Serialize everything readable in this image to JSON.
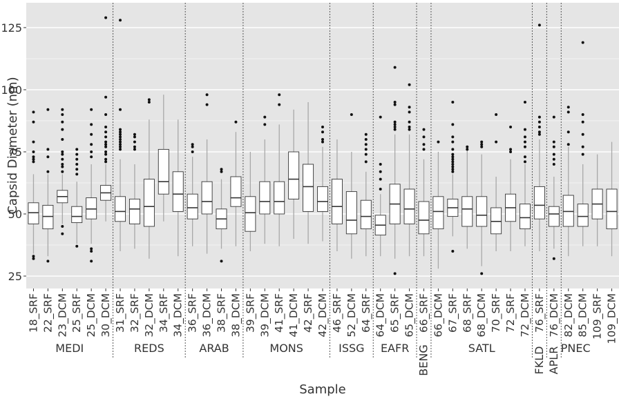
{
  "chart_data": {
    "type": "boxplot",
    "xlabel": "Sample",
    "ylabel": "Capsid Diameter (nm)",
    "ylim": [
      20,
      135
    ],
    "yticks": [
      25,
      50,
      75,
      100,
      125
    ],
    "grid": true,
    "legend": "none",
    "colors": {
      "panel_background": "#e5e5e5",
      "gridline": "#ffffff",
      "box_fill": "#ffffff",
      "box_stroke": "#333333",
      "whisker": "#a8a8a8",
      "outlier": "#111111",
      "separator": "#555555",
      "text": "#333333"
    },
    "groups": [
      {
        "name": "MEDI",
        "count": 6
      },
      {
        "name": "REDS",
        "count": 5
      },
      {
        "name": "ARAB",
        "count": 4
      },
      {
        "name": "MONS",
        "count": 6
      },
      {
        "name": "ISSG",
        "count": 3
      },
      {
        "name": "EAFR",
        "count": 3
      },
      {
        "name": "BENG",
        "count": 1
      },
      {
        "name": "SATL",
        "count": 7
      },
      {
        "name": "FKLD",
        "count": 1
      },
      {
        "name": "APLR",
        "count": 1
      },
      {
        "name": "PNEC",
        "count": 2
      }
    ],
    "boxes": [
      {
        "label": "18_SRF",
        "q1": 46,
        "median": 50.5,
        "q3": 54.5,
        "lower": 34,
        "upper": 66,
        "outliers": [
          91,
          87,
          79,
          75,
          73,
          72,
          71,
          33,
          32
        ]
      },
      {
        "label": "22_SRF",
        "q1": 44,
        "median": 49,
        "q3": 53.5,
        "lower": 33,
        "upper": 66,
        "outliers": [
          92,
          76,
          73,
          67,
          31
        ]
      },
      {
        "label": "23_DCM",
        "q1": 54.5,
        "median": 57,
        "q3": 59.5,
        "lower": 46,
        "upper": 66,
        "outliers": [
          92,
          90,
          87,
          84,
          80,
          75,
          74,
          72,
          70,
          69,
          67,
          45,
          42
        ]
      },
      {
        "label": "25_SRF",
        "q1": 46.5,
        "median": 49,
        "q3": 53,
        "lower": 38,
        "upper": 63,
        "outliers": [
          76,
          74,
          72,
          70,
          68,
          66,
          37
        ]
      },
      {
        "label": "25_DCM",
        "q1": 48,
        "median": 52,
        "q3": 56.5,
        "lower": 38,
        "upper": 70,
        "outliers": [
          92,
          86,
          82,
          78,
          75,
          73,
          36,
          35,
          31
        ]
      },
      {
        "label": "30_DCM",
        "q1": 55.5,
        "median": 58.5,
        "q3": 61.5,
        "lower": 47,
        "upper": 70,
        "outliers": [
          129,
          97,
          90,
          85,
          83,
          81,
          79,
          78,
          77,
          75,
          74,
          72,
          71
        ]
      },
      {
        "label": "31_SRF",
        "q1": 47,
        "median": 51,
        "q3": 57,
        "lower": 35,
        "upper": 72,
        "outliers": [
          128,
          92,
          84,
          83,
          82,
          81,
          80,
          79,
          78,
          77,
          76
        ]
      },
      {
        "label": "32_SRF",
        "q1": 46,
        "median": 52,
        "q3": 56,
        "lower": 36,
        "upper": 70,
        "outliers": [
          82,
          81,
          79,
          77,
          76
        ]
      },
      {
        "label": "32_DCM",
        "q1": 45,
        "median": 53,
        "q3": 64,
        "lower": 32,
        "upper": 88,
        "outliers": [
          96,
          95
        ]
      },
      {
        "label": "34_SRF",
        "q1": 58,
        "median": 63,
        "q3": 76,
        "lower": 47,
        "upper": 98,
        "outliers": []
      },
      {
        "label": "34_DCM",
        "q1": 51,
        "median": 58,
        "q3": 67,
        "lower": 33,
        "upper": 88,
        "outliers": []
      },
      {
        "label": "36_SRF",
        "q1": 48,
        "median": 52.5,
        "q3": 58,
        "lower": 37,
        "upper": 73,
        "outliers": [
          78,
          77,
          75
        ]
      },
      {
        "label": "36_DCM",
        "q1": 50,
        "median": 55,
        "q3": 63,
        "lower": 34,
        "upper": 80,
        "outliers": [
          98,
          94
        ]
      },
      {
        "label": "38_SRF",
        "q1": 44,
        "median": 48,
        "q3": 52,
        "lower": 36,
        "upper": 64,
        "outliers": [
          68,
          67,
          31
        ]
      },
      {
        "label": "38_DCM",
        "q1": 53,
        "median": 56.5,
        "q3": 65,
        "lower": 37,
        "upper": 83,
        "outliers": [
          87
        ]
      },
      {
        "label": "39_SRF",
        "q1": 43,
        "median": 50.5,
        "q3": 57,
        "lower": 35,
        "upper": 75,
        "outliers": []
      },
      {
        "label": "39_DCM",
        "q1": 50,
        "median": 55,
        "q3": 63,
        "lower": 38,
        "upper": 80,
        "outliers": [
          89,
          86
        ]
      },
      {
        "label": "41_SRF",
        "q1": 50,
        "median": 55,
        "q3": 63,
        "lower": 37,
        "upper": 86,
        "outliers": [
          98,
          94
        ]
      },
      {
        "label": "41_DCM",
        "q1": 56,
        "median": 64,
        "q3": 75,
        "lower": 40,
        "upper": 92,
        "outliers": []
      },
      {
        "label": "42_SRF",
        "q1": 51,
        "median": 61,
        "q3": 70,
        "lower": 38,
        "upper": 95,
        "outliers": []
      },
      {
        "label": "42_DCM",
        "q1": 51,
        "median": 55,
        "q3": 61,
        "lower": 39,
        "upper": 77,
        "outliers": [
          85,
          83,
          80,
          79
        ]
      },
      {
        "label": "46_SRF",
        "q1": 46,
        "median": 53,
        "q3": 64,
        "lower": 35,
        "upper": 80,
        "outliers": []
      },
      {
        "label": "52_DCM",
        "q1": 42,
        "median": 47.5,
        "q3": 59,
        "lower": 32,
        "upper": 75,
        "outliers": [
          90
        ]
      },
      {
        "label": "64_SRF",
        "q1": 44,
        "median": 49,
        "q3": 55.5,
        "lower": 33,
        "upper": 67,
        "outliers": [
          82,
          80,
          78,
          76,
          74,
          71
        ]
      },
      {
        "label": "64_DCM",
        "q1": 41.5,
        "median": 45.5,
        "q3": 49.5,
        "lower": 33,
        "upper": 58,
        "outliers": [
          89,
          70,
          67,
          64,
          60
        ]
      },
      {
        "label": "65_SRF",
        "q1": 46,
        "median": 54,
        "q3": 62,
        "lower": 32,
        "upper": 82,
        "outliers": [
          109,
          95,
          94,
          87,
          86,
          85,
          84,
          26
        ]
      },
      {
        "label": "65_DCM",
        "q1": 46,
        "median": 52,
        "q3": 60,
        "lower": 33,
        "upper": 82,
        "outliers": [
          102,
          93,
          91,
          87,
          85,
          84
        ]
      },
      {
        "label": "66_SRF",
        "q1": 42,
        "median": 47.5,
        "q3": 55,
        "lower": 33,
        "upper": 72,
        "outliers": [
          84,
          81,
          78,
          76
        ]
      },
      {
        "label": "66_DCM",
        "q1": 44,
        "median": 51,
        "q3": 57,
        "lower": 28,
        "upper": 75,
        "outliers": [
          79
        ]
      },
      {
        "label": "67_SRF",
        "q1": 49,
        "median": 52.5,
        "q3": 56,
        "lower": 41,
        "upper": 66,
        "outliers": [
          95,
          86,
          81,
          79,
          76,
          74,
          73,
          72,
          71,
          70,
          69,
          68,
          67,
          35
        ]
      },
      {
        "label": "68_SRF",
        "q1": 45,
        "median": 52,
        "q3": 57,
        "lower": 36,
        "upper": 76,
        "outliers": [
          77,
          76
        ]
      },
      {
        "label": "68_DCM",
        "q1": 45,
        "median": 49.5,
        "q3": 57,
        "lower": 29,
        "upper": 74,
        "outliers": [
          79,
          78,
          77,
          26
        ]
      },
      {
        "label": "70_SRF",
        "q1": 42,
        "median": 47,
        "q3": 52.5,
        "lower": 35,
        "upper": 65,
        "outliers": [
          90,
          79
        ]
      },
      {
        "label": "72_SRF",
        "q1": 47,
        "median": 52.5,
        "q3": 58,
        "lower": 35,
        "upper": 72,
        "outliers": [
          85,
          76,
          75
        ]
      },
      {
        "label": "72_DCM",
        "q1": 44,
        "median": 48.5,
        "q3": 54,
        "lower": 37,
        "upper": 70,
        "outliers": [
          95,
          84,
          81,
          79,
          77,
          73,
          71
        ]
      },
      {
        "label": "76_SRF",
        "q1": 48,
        "median": 53.5,
        "q3": 61,
        "lower": 35,
        "upper": 80,
        "outliers": [
          126,
          89,
          87,
          85,
          83,
          82
        ]
      },
      {
        "label": "76_DCM",
        "q1": 45,
        "median": 50,
        "q3": 53,
        "lower": 36,
        "upper": 65,
        "outliers": [
          89,
          79,
          77,
          74,
          72,
          70,
          32
        ]
      },
      {
        "label": "82_DCM",
        "q1": 45,
        "median": 51,
        "q3": 57.5,
        "lower": 33,
        "upper": 77,
        "outliers": [
          93,
          91,
          83,
          78
        ]
      },
      {
        "label": "85_DCM",
        "q1": 45,
        "median": 49,
        "q3": 54,
        "lower": 37,
        "upper": 70,
        "outliers": [
          119,
          90,
          87,
          82,
          77,
          74
        ]
      },
      {
        "label": "109_SRF",
        "q1": 48,
        "median": 54,
        "q3": 60,
        "lower": 37,
        "upper": 74,
        "outliers": []
      },
      {
        "label": "109_DCM",
        "q1": 44,
        "median": 51,
        "q3": 60,
        "lower": 33,
        "upper": 79,
        "outliers": []
      }
    ]
  }
}
